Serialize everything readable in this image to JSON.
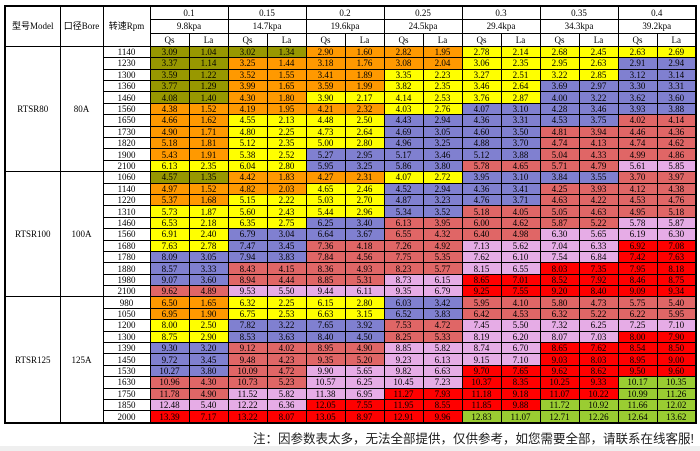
{
  "header": {
    "model_label": "型号Model",
    "bore_label": "口径Bore",
    "rpm_label": "转速Rpm",
    "pressures": [
      "0.1",
      "0.15",
      "0.2",
      "0.25",
      "0.3",
      "0.35",
      "0.4"
    ],
    "kpa": [
      "9.8kpa",
      "14.7kpa",
      "19.6kpa",
      "24.5kpa",
      "29.4kpa",
      "34.3kpa",
      "39.2kpa"
    ],
    "qs_label": "Qs",
    "la_label": "La"
  },
  "colors": {
    "D": "#989800",
    "O": "#ff9900",
    "Y": "#ffff00",
    "B": "#8080d0",
    "R": "#e06666",
    "P": "#e6ace6",
    "RR": "#ff0000",
    "G": "#9acd32"
  },
  "groups": [
    {
      "model": "RTSR80",
      "bore": "80A",
      "rows": [
        {
          "rpm": "1140",
          "v": [
            "3.09",
            "1.04",
            "3.02",
            "1.34",
            "2.90",
            "1.60",
            "2.82",
            "1.95",
            "2.78",
            "2.14",
            "2.68",
            "2.45",
            "2.63",
            "2.69"
          ],
          "c": [
            "D",
            "D",
            "O",
            "O",
            "Y",
            "Y",
            "Y"
          ]
        },
        {
          "rpm": "1230",
          "v": [
            "3.37",
            "1.14",
            "3.25",
            "1.44",
            "3.18",
            "1.76",
            "3.08",
            "2.04",
            "3.06",
            "2.35",
            "2.95",
            "2.63",
            "2.91",
            "2.94"
          ],
          "c": [
            "D",
            "O",
            "O",
            "O",
            "Y",
            "Y",
            "B"
          ]
        },
        {
          "rpm": "1300",
          "v": [
            "3.59",
            "1.22",
            "3.52",
            "1.55",
            "3.41",
            "1.89",
            "3.35",
            "2.23",
            "3.27",
            "2.51",
            "3.22",
            "2.85",
            "3.12",
            "3.14"
          ],
          "c": [
            "D",
            "O",
            "O",
            "Y",
            "Y",
            "Y",
            "B"
          ]
        },
        {
          "rpm": "1360",
          "v": [
            "3.77",
            "1.29",
            "3.99",
            "1.65",
            "3.59",
            "1.99",
            "3.82",
            "2.35",
            "3.46",
            "2.64",
            "3.69",
            "2.97",
            "3.30",
            "3.31"
          ],
          "c": [
            "D",
            "O",
            "O",
            "Y",
            "Y",
            "B",
            "B"
          ]
        },
        {
          "rpm": "1460",
          "v": [
            "4.08",
            "1.40",
            "4.30",
            "1.80",
            "3.90",
            "2.17",
            "4.14",
            "2.53",
            "3.76",
            "2.87",
            "4.00",
            "3.22",
            "3.62",
            "3.60"
          ],
          "c": [
            "D",
            "O",
            "Y",
            "Y",
            "Y",
            "B",
            "B"
          ]
        },
        {
          "rpm": "1560",
          "v": [
            "4.38",
            "1.52",
            "4.19",
            "1.95",
            "4.21",
            "2.32",
            "4.03",
            "2.76",
            "4.07",
            "3.10",
            "4.28",
            "3.46",
            "3.93",
            "3.88"
          ],
          "c": [
            "O",
            "O",
            "O",
            "Y",
            "B",
            "B",
            "B"
          ]
        },
        {
          "rpm": "1650",
          "v": [
            "4.66",
            "1.62",
            "4.55",
            "2.13",
            "4.48",
            "2.50",
            "4.43",
            "2.94",
            "4.36",
            "3.31",
            "4.53",
            "3.75",
            "4.02",
            "4.14"
          ],
          "c": [
            "O",
            "Y",
            "Y",
            "B",
            "B",
            "B",
            "R"
          ]
        },
        {
          "rpm": "1730",
          "v": [
            "4.90",
            "1.71",
            "4.80",
            "2.25",
            "4.73",
            "2.64",
            "4.69",
            "3.05",
            "4.60",
            "3.50",
            "4.81",
            "3.94",
            "4.46",
            "4.36"
          ],
          "c": [
            "O",
            "Y",
            "Y",
            "B",
            "B",
            "R",
            "R"
          ]
        },
        {
          "rpm": "1820",
          "v": [
            "5.18",
            "1.81",
            "5.12",
            "2.35",
            "5.00",
            "2.80",
            "4.96",
            "3.25",
            "4.88",
            "3.70",
            "4.74",
            "4.13",
            "4.74",
            "4.62"
          ],
          "c": [
            "O",
            "Y",
            "Y",
            "B",
            "B",
            "R",
            "R"
          ]
        },
        {
          "rpm": "1900",
          "v": [
            "5.43",
            "1.91",
            "5.38",
            "2.52",
            "5.27",
            "2.95",
            "5.17",
            "3.46",
            "5.12",
            "3.88",
            "5.04",
            "4.33",
            "4.99",
            "4.86"
          ],
          "c": [
            "O",
            "Y",
            "B",
            "B",
            "B",
            "R",
            "R"
          ]
        },
        {
          "rpm": "2100",
          "v": [
            "6.13",
            "2.35",
            "6.04",
            "2.80",
            "5.95",
            "3.25",
            "5.86",
            "3.80",
            "5.78",
            "4.65",
            "5.71",
            "4.79",
            "5.61",
            "5.85"
          ],
          "c": [
            "Y",
            "Y",
            "B",
            "B",
            "R",
            "R",
            "P"
          ]
        }
      ]
    },
    {
      "model": "RTSR100",
      "bore": "100A",
      "rows": [
        {
          "rpm": "1060",
          "v": [
            "4.57",
            "1.35",
            "4.42",
            "1.83",
            "4.27",
            "2.31",
            "4.07",
            "2.72",
            "3.95",
            "3.10",
            "3.84",
            "3.55",
            "3.70",
            "3.97"
          ],
          "c": [
            "D",
            "O",
            "O",
            "Y",
            "B",
            "B",
            "R"
          ]
        },
        {
          "rpm": "1140",
          "v": [
            "4.97",
            "1.52",
            "4.82",
            "2.03",
            "4.65",
            "2.46",
            "4.52",
            "2.94",
            "4.36",
            "3.41",
            "4.25",
            "3.93",
            "4.12",
            "4.38"
          ],
          "c": [
            "O",
            "O",
            "Y",
            "B",
            "B",
            "R",
            "R"
          ]
        },
        {
          "rpm": "1220",
          "v": [
            "5.37",
            "1.68",
            "5.15",
            "2.22",
            "5.03",
            "2.70",
            "4.87",
            "3.23",
            "4.76",
            "3.71",
            "4.63",
            "4.22",
            "4.53",
            "4.76"
          ],
          "c": [
            "O",
            "Y",
            "Y",
            "B",
            "B",
            "R",
            "R"
          ]
        },
        {
          "rpm": "1310",
          "v": [
            "5.73",
            "1.87",
            "5.60",
            "2.43",
            "5.44",
            "2.96",
            "5.34",
            "3.52",
            "5.18",
            "4.05",
            "5.05",
            "4.63",
            "4.95",
            "5.18"
          ],
          "c": [
            "Y",
            "Y",
            "Y",
            "B",
            "R",
            "R",
            "R"
          ]
        },
        {
          "rpm": "1460",
          "v": [
            "6.53",
            "2.18",
            "6.35",
            "2.75",
            "6.25",
            "3.40",
            "6.13",
            "3.95",
            "6.00",
            "4.62",
            "5.87",
            "5.22",
            "5.78",
            "5.87"
          ],
          "c": [
            "Y",
            "Y",
            "B",
            "R",
            "R",
            "R",
            "P"
          ]
        },
        {
          "rpm": "1560",
          "v": [
            "6.91",
            "2.40",
            "6.79",
            "3.04",
            "6.64",
            "3.67",
            "6.55",
            "4.32",
            "6.40",
            "4.98",
            "6.30",
            "5.65",
            "6.19",
            "6.30"
          ],
          "c": [
            "Y",
            "B",
            "B",
            "R",
            "R",
            "P",
            "P"
          ]
        },
        {
          "rpm": "1680",
          "v": [
            "7.63",
            "2.78",
            "7.47",
            "3.45",
            "7.36",
            "4.18",
            "7.26",
            "4.92",
            "7.13",
            "5.62",
            "7.04",
            "6.33",
            "6.92",
            "7.08"
          ],
          "c": [
            "Y",
            "B",
            "R",
            "R",
            "P",
            "P",
            "RR"
          ]
        },
        {
          "rpm": "1780",
          "v": [
            "8.09",
            "3.05",
            "7.94",
            "3.83",
            "7.84",
            "4.56",
            "7.75",
            "5.35",
            "7.62",
            "6.10",
            "7.54",
            "6.84",
            "7.42",
            "7.63"
          ],
          "c": [
            "B",
            "B",
            "R",
            "R",
            "P",
            "P",
            "RR"
          ]
        },
        {
          "rpm": "1880",
          "v": [
            "8.57",
            "3.33",
            "8.43",
            "4.15",
            "8.36",
            "4.93",
            "8.23",
            "5.77",
            "8.15",
            "6.55",
            "8.03",
            "7.35",
            "7.95",
            "8.18"
          ],
          "c": [
            "B",
            "R",
            "R",
            "R",
            "P",
            "RR",
            "RR"
          ]
        },
        {
          "rpm": "1980",
          "v": [
            "9.07",
            "3.60",
            "8.94",
            "4.44",
            "8.85",
            "5.31",
            "8.73",
            "6.15",
            "8.65",
            "7.01",
            "8.52",
            "7.92",
            "8.46",
            "8.75"
          ],
          "c": [
            "B",
            "R",
            "R",
            "P",
            "RR",
            "RR",
            "RR"
          ]
        },
        {
          "rpm": "2100",
          "v": [
            "9.62",
            "4.89",
            "9.53",
            "5.50",
            "9.44",
            "6.11",
            "9.35",
            "6.79",
            "9.25",
            "7.55",
            "9.20",
            "8.40",
            "9.09",
            "9.34"
          ],
          "c": [
            "R",
            "P",
            "P",
            "P",
            "RR",
            "RR",
            "RR"
          ]
        }
      ]
    },
    {
      "model": "RTSR125",
      "bore": "125A",
      "rows": [
        {
          "rpm": "980",
          "v": [
            "6.50",
            "1.65",
            "6.32",
            "2.25",
            "6.15",
            "2.80",
            "6.03",
            "3.42",
            "5.95",
            "4.10",
            "5.80",
            "4.73",
            "5.75",
            "5.40"
          ],
          "c": [
            "O",
            "Y",
            "Y",
            "B",
            "R",
            "R",
            "R"
          ]
        },
        {
          "rpm": "1050",
          "v": [
            "6.95",
            "1.90",
            "6.75",
            "2.53",
            "6.63",
            "3.15",
            "6.52",
            "3.83",
            "6.42",
            "4.53",
            "6.32",
            "5.22",
            "6.22",
            "5.95"
          ],
          "c": [
            "O",
            "Y",
            "Y",
            "B",
            "R",
            "R",
            "R"
          ]
        },
        {
          "rpm": "1200",
          "v": [
            "8.00",
            "2.50",
            "7.82",
            "3.22",
            "7.65",
            "3.92",
            "7.53",
            "4.72",
            "7.45",
            "5.50",
            "7.32",
            "6.25",
            "7.25",
            "7.10"
          ],
          "c": [
            "Y",
            "B",
            "B",
            "R",
            "P",
            "P",
            "P"
          ]
        },
        {
          "rpm": "1300",
          "v": [
            "8.75",
            "2.90",
            "8.53",
            "3.63",
            "8.40",
            "4.50",
            "8.25",
            "5.33",
            "8.19",
            "6.20",
            "8.07",
            "7.03",
            "8.00",
            "7.90"
          ],
          "c": [
            "Y",
            "B",
            "B",
            "R",
            "P",
            "P",
            "RR"
          ]
        },
        {
          "rpm": "1390",
          "v": [
            "9.30",
            "3.20",
            "9.12",
            "4.02",
            "8.95",
            "4.90",
            "8.85",
            "5.82",
            "8.74",
            "6.70",
            "8.65",
            "7.62",
            "8.54",
            "8.50"
          ],
          "c": [
            "B",
            "R",
            "R",
            "P",
            "P",
            "RR",
            "RR"
          ]
        },
        {
          "rpm": "1450",
          "v": [
            "9.72",
            "3.45",
            "9.48",
            "4.23",
            "9.35",
            "5.20",
            "9.23",
            "6.13",
            "9.15",
            "7.10",
            "9.03",
            "8.03",
            "8.95",
            "9.00"
          ],
          "c": [
            "B",
            "R",
            "R",
            "P",
            "P",
            "RR",
            "RR"
          ]
        },
        {
          "rpm": "1530",
          "v": [
            "10.27",
            "3.80",
            "10.09",
            "4.72",
            "9.90",
            "5.65",
            "9.82",
            "6.63",
            "9.70",
            "7.65",
            "9.62",
            "8.62",
            "9.50",
            "9.60"
          ],
          "c": [
            "B",
            "R",
            "P",
            "P",
            "RR",
            "RR",
            "RR"
          ]
        },
        {
          "rpm": "1630",
          "v": [
            "10.96",
            "4.30",
            "10.73",
            "5.23",
            "10.57",
            "6.25",
            "10.45",
            "7.23",
            "10.37",
            "8.35",
            "10.25",
            "9.33",
            "10.17",
            "10.35"
          ],
          "c": [
            "R",
            "R",
            "P",
            "P",
            "RR",
            "RR",
            "G"
          ]
        },
        {
          "rpm": "1750",
          "v": [
            "11.78",
            "4.90",
            "11.52",
            "5.82",
            "11.38",
            "6.95",
            "11.27",
            "7.93",
            "11.18",
            "9.18",
            "11.07",
            "10.22",
            "10.99",
            "11.26"
          ],
          "c": [
            "R",
            "P",
            "P",
            "RR",
            "RR",
            "RR",
            "G"
          ]
        },
        {
          "rpm": "1850",
          "v": [
            "12.48",
            "5.40",
            "12.22",
            "6.36",
            "12.05",
            "7.55",
            "11.95",
            "8.55",
            "11.85",
            "9.88",
            "11.72",
            "10.92",
            "11.66",
            "12.02"
          ],
          "c": [
            "P",
            "P",
            "RR",
            "RR",
            "RR",
            "G",
            "G"
          ]
        },
        {
          "rpm": "2000",
          "v": [
            "13.39",
            "7.17",
            "13.22",
            "8.07",
            "13.05",
            "8.97",
            "12.91",
            "9.96",
            "12.83",
            "11.07",
            "12.71",
            "12.26",
            "12.64",
            "13.62"
          ],
          "c": [
            "RR",
            "RR",
            "RR",
            "RR",
            "G",
            "G",
            "G"
          ]
        }
      ]
    }
  ],
  "note": "注：因参数表太多，无法全部提供，仅供参考，如您需要全部，请联系在线客服!"
}
